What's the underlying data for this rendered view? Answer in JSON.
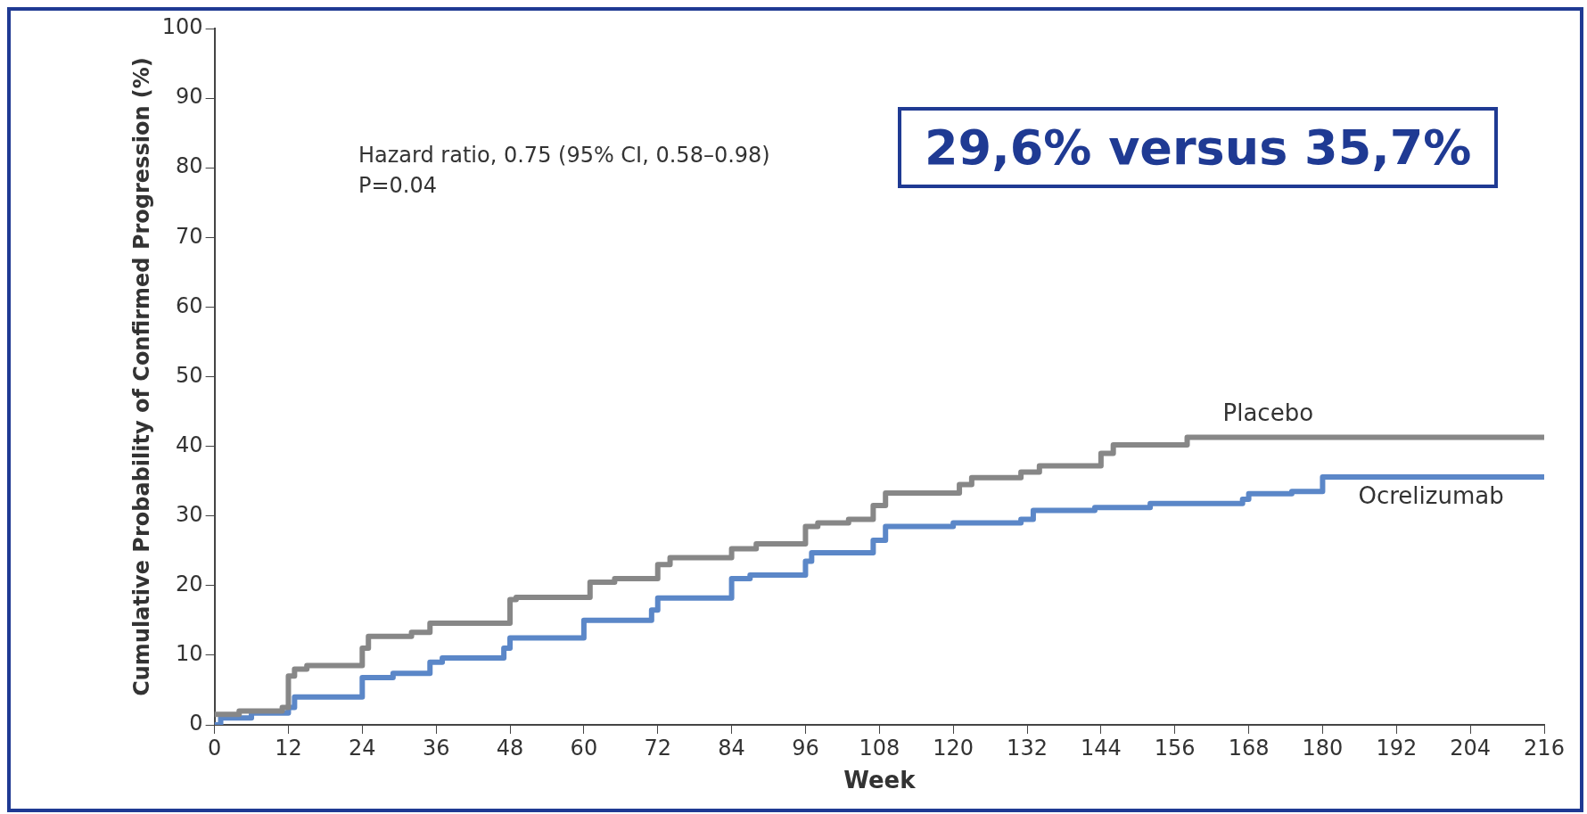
{
  "chart_data": {
    "type": "step",
    "xlabel": "Week",
    "ylabel": "Cumulative Probability of Confirmed Progression (%)",
    "xlim": [
      0,
      216
    ],
    "xticks": [
      0,
      12,
      24,
      36,
      48,
      60,
      72,
      84,
      96,
      108,
      120,
      132,
      144,
      156,
      168,
      180,
      192,
      204,
      216
    ],
    "ylim": [
      0,
      100
    ],
    "yticks": [
      0,
      10,
      20,
      30,
      40,
      50,
      60,
      70,
      80,
      90,
      100
    ],
    "grid": false,
    "legend": false,
    "marker": "none",
    "line_style": "solid",
    "series": [
      {
        "name": "Placebo",
        "color": "#878787",
        "x": [
          0,
          4,
          11,
          12,
          13,
          15,
          24,
          25,
          32,
          35,
          48,
          49,
          61,
          65,
          72,
          74,
          84,
          88,
          96,
          98,
          103,
          107,
          109,
          121,
          123,
          131,
          134,
          144,
          146,
          158,
          216
        ],
        "values": [
          1.5,
          2,
          2.5,
          7,
          8,
          8.5,
          11,
          12.7,
          13.3,
          14.6,
          18,
          18.3,
          20.5,
          21,
          23,
          24,
          25.3,
          26,
          28.5,
          29,
          29.5,
          31.5,
          33.3,
          34.5,
          35.5,
          36.3,
          37.2,
          39,
          40.2,
          41.3,
          41.3
        ]
      },
      {
        "name": "Ocrelizumab",
        "color": "#5b87c8",
        "x": [
          0,
          1,
          6,
          12,
          13,
          24,
          29,
          35,
          37,
          47,
          48,
          60,
          71,
          72,
          84,
          87,
          96,
          97,
          107,
          109,
          120,
          131,
          133,
          143,
          152,
          167,
          168,
          175,
          180,
          216
        ],
        "values": [
          0,
          1,
          1.7,
          2.5,
          4,
          6.8,
          7.4,
          9,
          9.6,
          11,
          12.5,
          15,
          16.5,
          18.2,
          21,
          21.5,
          23.5,
          24.7,
          26.5,
          28.5,
          29,
          29.5,
          30.8,
          31.2,
          31.8,
          32.4,
          33.2,
          33.5,
          35.6,
          35.6
        ]
      }
    ],
    "annotations": [
      "Hazard ratio, 0.75 (95% CI, 0.58–0.98)\nP=0.04",
      "29,6% versus 35,7%"
    ]
  }
}
